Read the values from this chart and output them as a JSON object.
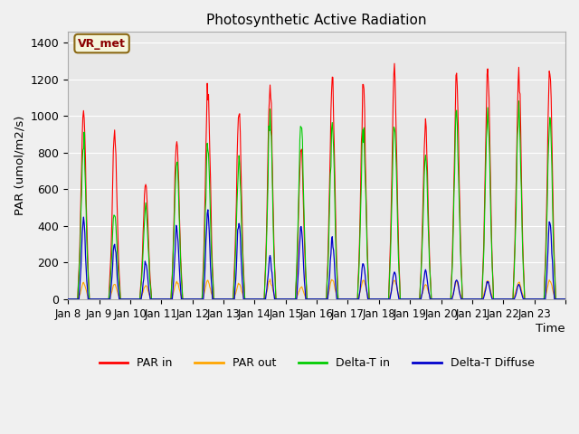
{
  "title": "Photosynthetic Active Radiation",
  "ylabel": "PAR (umol/m2/s)",
  "xlabel": "Time",
  "annotation": "VR_met",
  "background_color": "#f0f0f0",
  "plot_bg_color": "#e8e8e8",
  "ylim": [
    0,
    1460
  ],
  "series": {
    "par_in_color": "#ff0000",
    "par_out_color": "#ffa500",
    "delta_t_in_color": "#00cc00",
    "delta_t_diffuse_color": "#0000cc"
  },
  "x_ticks": [
    "Jan 8",
    "Jan 9",
    "Jan 10",
    "Jan 11",
    "Jan 12",
    "Jan 13",
    "Jan 14",
    "Jan 15",
    "Jan 16",
    "Jan 17",
    "Jan 18",
    "Jan 19",
    "Jan 20",
    "Jan 21",
    "Jan 22",
    "Jan 23",
    ""
  ],
  "yticks": [
    0,
    200,
    400,
    600,
    800,
    1000,
    1200,
    1400
  ],
  "legend_entries": [
    "PAR in",
    "PAR out",
    "Delta-T in",
    "Delta-T Diffuse"
  ],
  "days": 16,
  "points_per_day": 48,
  "par_in_peak_vals": [
    1030,
    880,
    645,
    870,
    1140,
    1030,
    1160,
    810,
    1200,
    1175,
    1250,
    950,
    1220,
    1260,
    1240,
    1270
  ],
  "par_out_peak_vals": [
    90,
    80,
    75,
    95,
    100,
    85,
    100,
    65,
    110,
    105,
    105,
    80,
    95,
    100,
    95,
    100
  ],
  "delta_t_in_peak_vals": [
    850,
    500,
    500,
    750,
    830,
    760,
    980,
    1000,
    940,
    950,
    990,
    800,
    1000,
    1040,
    1030,
    1000
  ],
  "delta_t_diffuse_peak_vals": [
    420,
    300,
    200,
    390,
    480,
    430,
    230,
    410,
    340,
    200,
    155,
    155,
    110,
    95,
    80,
    430
  ]
}
